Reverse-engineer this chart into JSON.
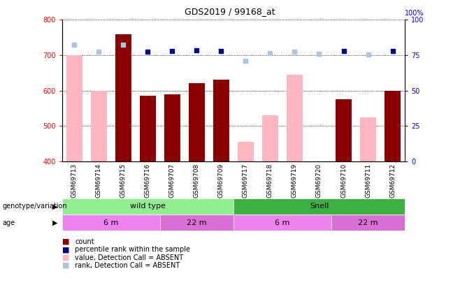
{
  "title": "GDS2019 / 99168_at",
  "samples": [
    "GSM69713",
    "GSM69714",
    "GSM69715",
    "GSM69716",
    "GSM69707",
    "GSM69708",
    "GSM69709",
    "GSM69717",
    "GSM69718",
    "GSM69719",
    "GSM69720",
    "GSM69710",
    "GSM69711",
    "GSM69712"
  ],
  "count_values": [
    null,
    null,
    760,
    585,
    590,
    620,
    630,
    null,
    null,
    null,
    null,
    575,
    null,
    600
  ],
  "count_absent_values": [
    700,
    600,
    null,
    null,
    null,
    null,
    null,
    455,
    530,
    645,
    null,
    null,
    525,
    null
  ],
  "rank_present": [
    null,
    null,
    730,
    710,
    712,
    713,
    712,
    null,
    null,
    null,
    null,
    712,
    null,
    712
  ],
  "rank_absent": [
    730,
    710,
    730,
    null,
    null,
    null,
    null,
    685,
    705,
    710,
    703,
    null,
    702,
    null
  ],
  "ylim_left": [
    400,
    800
  ],
  "ylim_right": [
    0,
    100
  ],
  "yticks_left": [
    400,
    500,
    600,
    700,
    800
  ],
  "yticks_right": [
    0,
    25,
    50,
    75,
    100
  ],
  "color_count": "#8B0000",
  "color_rank_present": "#00008B",
  "color_value_absent": "#FFB6C1",
  "color_rank_absent": "#B0C4DE",
  "genotype_wildtype_color": "#90EE90",
  "genotype_snell_color": "#3CB043",
  "age_6m_color": "#EE82EE",
  "age_22m_color": "#DA70D6",
  "xtick_bg": "#C0C0C0"
}
